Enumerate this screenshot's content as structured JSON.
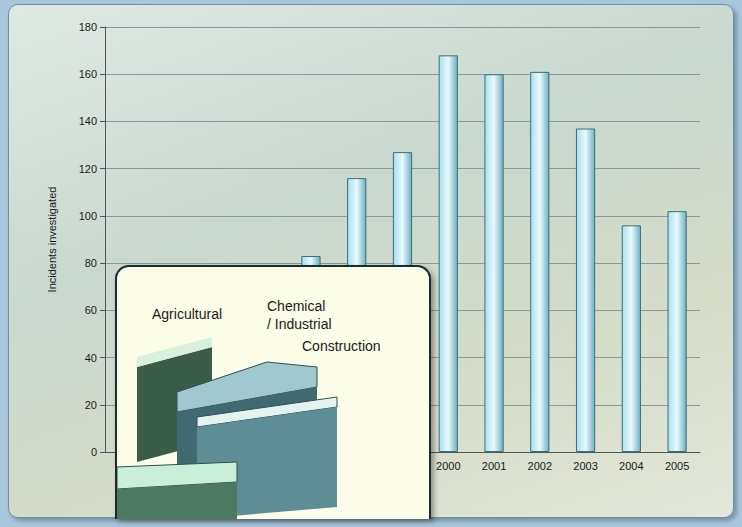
{
  "chart_data": {
    "type": "bar",
    "y_label": "Incidents investigated",
    "categories": [
      null,
      null,
      null,
      null,
      null,
      null,
      null,
      "2000",
      "2001",
      "2002",
      "2003",
      "2004",
      "2005"
    ],
    "values": [
      null,
      null,
      null,
      null,
      83,
      116,
      127,
      168,
      160,
      161,
      137,
      96,
      102
    ],
    "color": "#a8e0ec",
    "ylim": [
      0,
      180
    ],
    "yticks": [
      0,
      20,
      40,
      60,
      80,
      100,
      120,
      140,
      160,
      180
    ],
    "grid": true
  },
  "inset": {
    "labels": [
      "Agricultural",
      "Chemical / Industrial",
      "Construction"
    ]
  }
}
